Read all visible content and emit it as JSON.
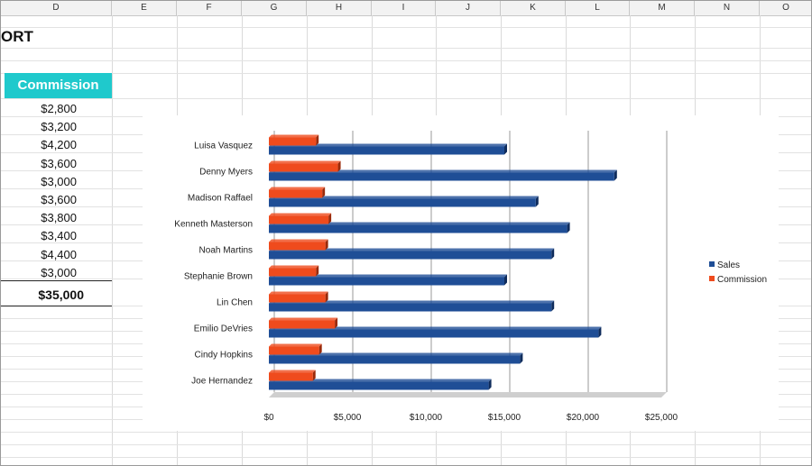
{
  "spreadsheet": {
    "columns": [
      "D",
      "E",
      "F",
      "G",
      "H",
      "I",
      "J",
      "K",
      "L",
      "M",
      "N",
      "O"
    ],
    "title_fragment": "ORT",
    "commission_header": "Commission",
    "commission_values": [
      "$2,800",
      "$3,200",
      "$4,200",
      "$3,600",
      "$3,000",
      "$3,600",
      "$3,800",
      "$3,400",
      "$4,400",
      "$3,000"
    ],
    "total": "$35,000"
  },
  "chart_data": {
    "type": "bar",
    "orientation": "horizontal",
    "categories": [
      "Luisa Vasquez",
      "Denny Myers",
      "Madison Raffael",
      "Kenneth Masterson",
      "Noah Martins",
      "Stephanie Brown",
      "Lin Chen",
      "Emilio DeVries",
      "Cindy Hopkins",
      "Joe Hernandez"
    ],
    "series": [
      {
        "name": "Sales",
        "color": "#1f4e96",
        "values": [
          15000,
          22000,
          17000,
          19000,
          18000,
          15000,
          18000,
          21000,
          16000,
          14000
        ]
      },
      {
        "name": "Commission",
        "color": "#ef4b1d",
        "values": [
          3000,
          4400,
          3400,
          3800,
          3600,
          3000,
          3600,
          4200,
          3200,
          2800
        ]
      }
    ],
    "x_ticks": [
      "$0",
      "$5,000",
      "$10,000",
      "$15,000",
      "$20,000",
      "$25,000"
    ],
    "xlim": [
      0,
      25000
    ],
    "legend_position": "right",
    "grid": true,
    "style": "3d"
  }
}
